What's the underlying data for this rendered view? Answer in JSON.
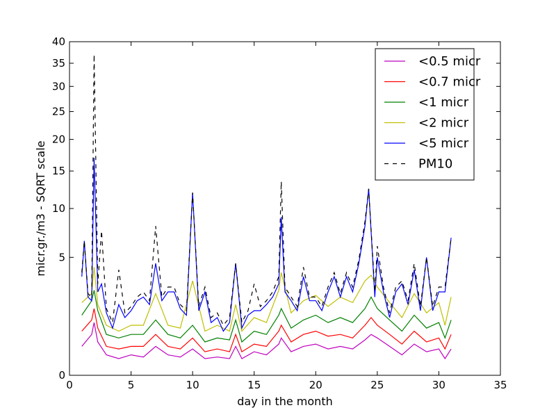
{
  "chart_data": {
    "type": "line",
    "xlabel": "day in the month",
    "ylabel": "micr.gr./m3 - SQRT scale",
    "yscale": "sqrt",
    "xlim": [
      0,
      35
    ],
    "ylim": [
      0,
      40
    ],
    "xticks": [
      0,
      5,
      10,
      15,
      20,
      25,
      30,
      35
    ],
    "yticks": [
      0,
      5,
      10,
      15,
      20,
      25,
      30,
      35,
      40
    ],
    "legend_position": "top-right",
    "series": [
      {
        "name": "<0.5 micr",
        "color": "#bf00bf",
        "dash": "solid",
        "x": [
          1,
          1.8,
          2,
          2.3,
          3,
          4,
          5,
          6,
          7,
          8,
          9,
          10,
          11,
          12,
          13,
          13.5,
          14,
          15,
          16,
          17,
          17.2,
          18,
          19,
          20,
          21,
          22,
          23,
          24,
          24.5,
          25,
          26,
          27,
          28,
          29,
          30,
          30.5,
          31
        ],
        "y": [
          0.3,
          0.6,
          1.0,
          0.4,
          0.15,
          0.1,
          0.15,
          0.12,
          0.3,
          0.15,
          0.12,
          0.25,
          0.1,
          0.12,
          0.1,
          0.3,
          0.1,
          0.2,
          0.15,
          0.35,
          0.5,
          0.2,
          0.3,
          0.35,
          0.25,
          0.3,
          0.25,
          0.45,
          0.6,
          0.5,
          0.3,
          0.15,
          0.35,
          0.2,
          0.25,
          0.1,
          0.25
        ]
      },
      {
        "name": "<0.7 micr",
        "color": "#ff0000",
        "dash": "solid",
        "x": [
          1,
          1.8,
          2,
          2.3,
          3,
          4,
          5,
          6,
          7,
          8,
          9,
          10,
          11,
          12,
          13,
          13.5,
          14,
          15,
          16,
          17,
          17.2,
          18,
          19,
          20,
          21,
          22,
          23,
          24,
          24.5,
          25,
          26,
          27,
          28,
          29,
          30,
          30.5,
          31
        ],
        "y": [
          0.7,
          1.1,
          1.6,
          0.8,
          0.3,
          0.25,
          0.3,
          0.3,
          0.6,
          0.3,
          0.25,
          0.5,
          0.2,
          0.25,
          0.2,
          0.6,
          0.2,
          0.35,
          0.3,
          0.7,
          0.9,
          0.4,
          0.6,
          0.7,
          0.55,
          0.6,
          0.5,
          0.9,
          1.2,
          0.9,
          0.6,
          0.35,
          0.7,
          0.4,
          0.5,
          0.25,
          0.6
        ]
      },
      {
        "name": "<1 micr",
        "color": "#008000",
        "dash": "solid",
        "x": [
          1,
          1.8,
          2,
          2.3,
          3,
          4,
          5,
          6,
          7,
          8,
          9,
          10,
          11,
          12,
          13,
          13.5,
          14,
          15,
          16,
          17,
          17.2,
          18,
          19,
          20,
          21,
          22,
          23,
          24,
          24.5,
          25,
          26,
          27,
          28,
          29,
          30,
          30.5,
          31
        ],
        "y": [
          1.3,
          2.0,
          2.6,
          1.5,
          0.6,
          0.5,
          0.6,
          0.6,
          1.1,
          0.6,
          0.5,
          0.9,
          0.4,
          0.5,
          0.45,
          1.1,
          0.4,
          0.7,
          0.6,
          1.3,
          1.6,
          0.8,
          1.1,
          1.3,
          1.0,
          1.2,
          1.0,
          1.6,
          2.2,
          1.6,
          1.1,
          0.7,
          1.3,
          0.8,
          1.0,
          0.5,
          1.1
        ]
      },
      {
        "name": "<2 micr",
        "color": "#bfbf00",
        "dash": "solid",
        "x": [
          1,
          1.8,
          2,
          2.3,
          3,
          4,
          5,
          6,
          7,
          8,
          9,
          10,
          11,
          12,
          13,
          13.5,
          14,
          15,
          16,
          17,
          17.2,
          18,
          19,
          20,
          21,
          22,
          23,
          24,
          24.5,
          25,
          26,
          27,
          28,
          29,
          30,
          30.5,
          31
        ],
        "y": [
          1.9,
          2.4,
          4.2,
          1.8,
          0.9,
          0.7,
          0.9,
          0.9,
          2.4,
          0.9,
          0.8,
          3.2,
          0.7,
          0.9,
          0.7,
          1.8,
          0.7,
          1.2,
          1.0,
          2.6,
          3.8,
          1.4,
          2.0,
          2.3,
          1.7,
          2.2,
          1.9,
          3.2,
          3.6,
          2.8,
          1.9,
          1.2,
          2.4,
          1.4,
          1.9,
          0.9,
          2.2
        ]
      },
      {
        "name": "<5 micr",
        "color": "#0000ff",
        "dash": "solid",
        "x": [
          1,
          1.2,
          1.5,
          1.8,
          2,
          2.3,
          2.6,
          3,
          3.5,
          4,
          4.5,
          5,
          5.5,
          6,
          6.5,
          7,
          7.5,
          8,
          8.5,
          9,
          9.5,
          10,
          10.5,
          11,
          11.5,
          12,
          12.5,
          13,
          13.5,
          14,
          14.5,
          15,
          15.5,
          16,
          16.5,
          17,
          17.2,
          17.5,
          18,
          18.5,
          19,
          19.5,
          20,
          20.5,
          21,
          21.5,
          22,
          22.5,
          23,
          23.5,
          24,
          24.3,
          24.8,
          25,
          25.5,
          26,
          26.5,
          27,
          27.5,
          28,
          28.5,
          29,
          29.5,
          30,
          30.5,
          31
        ],
        "y": [
          3.5,
          6.5,
          2.2,
          2.0,
          17.0,
          2.5,
          3.0,
          1.4,
          0.8,
          1.8,
          1.2,
          1.5,
          2.0,
          2.2,
          1.8,
          4.5,
          2.0,
          2.5,
          2.5,
          1.6,
          1.3,
          12.0,
          1.5,
          2.5,
          1.0,
          1.2,
          0.7,
          1.0,
          4.5,
          0.8,
          1.3,
          1.5,
          1.5,
          1.8,
          2.2,
          3.0,
          9.0,
          2.5,
          2.0,
          1.5,
          3.5,
          2.0,
          2.0,
          1.5,
          2.5,
          3.5,
          2.2,
          3.5,
          2.5,
          4.5,
          8.0,
          12.5,
          2.2,
          5.0,
          2.5,
          1.2,
          2.5,
          3.0,
          1.8,
          4.0,
          1.5,
          5.0,
          1.5,
          2.5,
          2.5,
          6.8
        ]
      },
      {
        "name": "PM10",
        "color": "#000000",
        "dash": "dashed",
        "x": [
          1,
          1.2,
          1.5,
          1.8,
          2,
          2.3,
          2.6,
          3,
          3.5,
          4,
          4.5,
          5,
          5.5,
          6,
          6.5,
          7,
          7.5,
          8,
          8.5,
          9,
          9.5,
          10,
          10.5,
          11,
          11.5,
          12,
          12.5,
          13,
          13.5,
          14,
          14.5,
          15,
          15.5,
          16,
          16.5,
          17,
          17.2,
          17.5,
          18,
          18.5,
          19,
          19.5,
          20,
          20.5,
          21,
          21.5,
          22,
          22.5,
          23,
          23.5,
          24,
          24.3,
          24.8,
          25,
          25.5,
          26,
          26.5,
          27,
          27.5,
          28,
          28.5,
          29,
          29.5,
          30,
          30.5,
          31
        ],
        "y": [
          3.8,
          6.5,
          2.4,
          2.2,
          37.0,
          3.0,
          7.5,
          1.6,
          1.0,
          4.0,
          1.4,
          1.7,
          2.2,
          2.5,
          2.0,
          8.0,
          2.2,
          2.8,
          2.8,
          1.8,
          1.5,
          12.0,
          1.7,
          2.8,
          1.2,
          1.4,
          0.9,
          1.2,
          4.5,
          1.0,
          1.5,
          3.0,
          1.7,
          2.0,
          2.5,
          3.5,
          13.5,
          2.8,
          2.2,
          1.7,
          4.2,
          2.2,
          2.2,
          1.7,
          2.8,
          3.8,
          2.4,
          3.8,
          2.8,
          4.8,
          8.5,
          12.5,
          2.5,
          6.0,
          2.8,
          1.4,
          2.8,
          3.2,
          2.0,
          4.5,
          1.7,
          5.0,
          1.7,
          2.8,
          2.8,
          6.8
        ]
      }
    ]
  }
}
